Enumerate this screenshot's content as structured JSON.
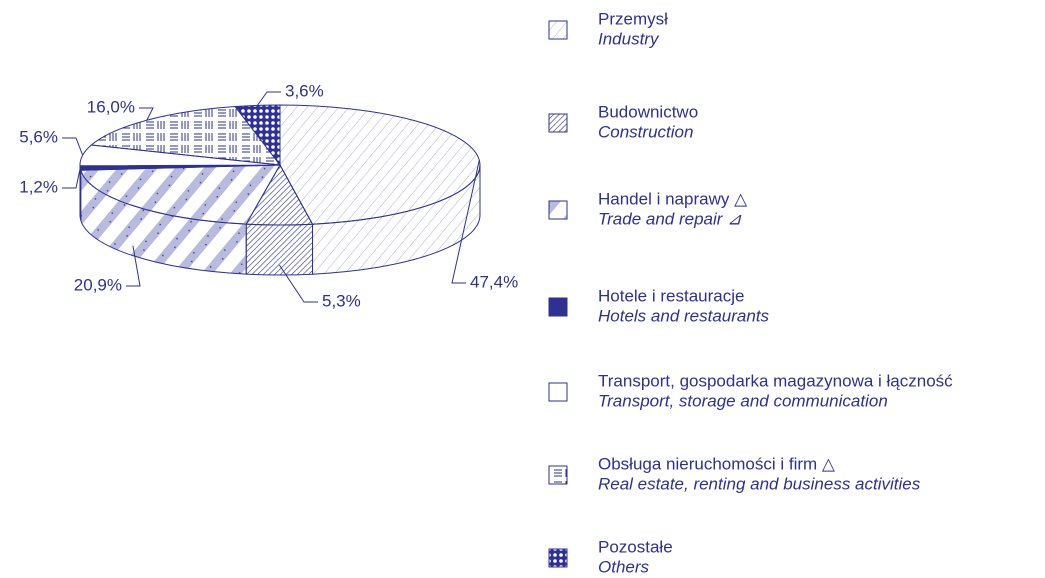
{
  "chart_data": {
    "type": "pie",
    "categories": [
      "Przemysł",
      "Budownictwo",
      "Handel i naprawy △",
      "Hotele i restauracje",
      "Transport, gospodarka magazynowa i łączność",
      "Obsługa nieruchomości i firm △",
      "Pozostałe"
    ],
    "categories_en": [
      "Industry",
      "Construction",
      "Trade and repair ⊿",
      "Hotels and restaurants",
      "Transport, storage and communication",
      "Real estate, renting and business activities",
      "Others"
    ],
    "values": [
      47.4,
      5.3,
      20.9,
      1.2,
      5.6,
      16.0,
      3.6
    ],
    "value_labels": [
      "47,4%",
      "5,3%",
      "20,9%",
      "1,2%",
      "5,6%",
      "16,0%",
      "3,6%"
    ],
    "color": "#2e3192"
  }
}
